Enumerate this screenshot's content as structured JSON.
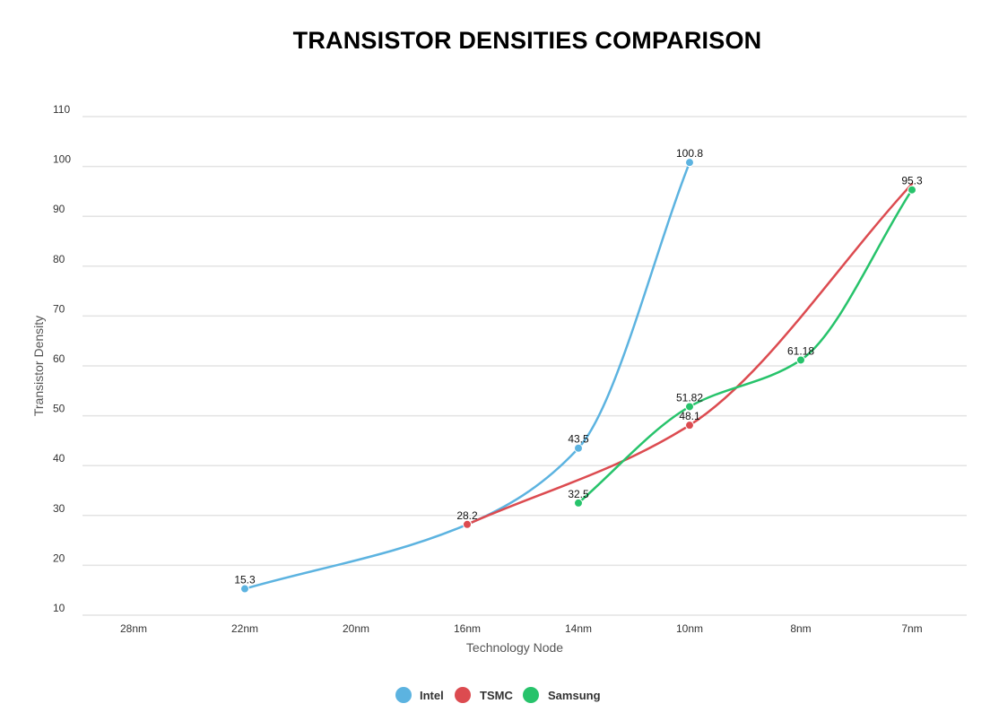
{
  "chart_data": {
    "type": "line",
    "title": "TRANSISTOR DENSITIES COMPARISON",
    "xlabel": "Technology Node",
    "ylabel": "Transistor Density",
    "categories": [
      "28nm",
      "22nm",
      "20nm",
      "16nm",
      "14nm",
      "10nm",
      "8nm",
      "7nm"
    ],
    "y_ticks": [
      10,
      20,
      30,
      40,
      50,
      60,
      70,
      80,
      90,
      100,
      110
    ],
    "ylim": [
      10,
      110
    ],
    "grid": "horizontal",
    "legend_position": "bottom",
    "series": [
      {
        "name": "Intel",
        "color": "#5cb3e0",
        "values": [
          null,
          15.3,
          null,
          28.2,
          43.5,
          100.8,
          null,
          null
        ],
        "labels": [
          "",
          "15.3",
          "",
          "",
          "43.5",
          "100.8",
          "",
          ""
        ]
      },
      {
        "name": "TSMC",
        "color": "#dc4b50",
        "values": [
          null,
          null,
          null,
          28.2,
          null,
          48.1,
          null,
          96.5
        ],
        "labels": [
          "",
          "",
          "",
          "28.2",
          "",
          "48.1",
          "",
          ""
        ]
      },
      {
        "name": "Samsung",
        "color": "#27c36b",
        "values": [
          null,
          null,
          null,
          null,
          32.5,
          51.82,
          61.18,
          95.3
        ],
        "labels": [
          "",
          "",
          "",
          "",
          "32.5",
          "51.82",
          "61.18",
          "95.3"
        ]
      }
    ]
  }
}
